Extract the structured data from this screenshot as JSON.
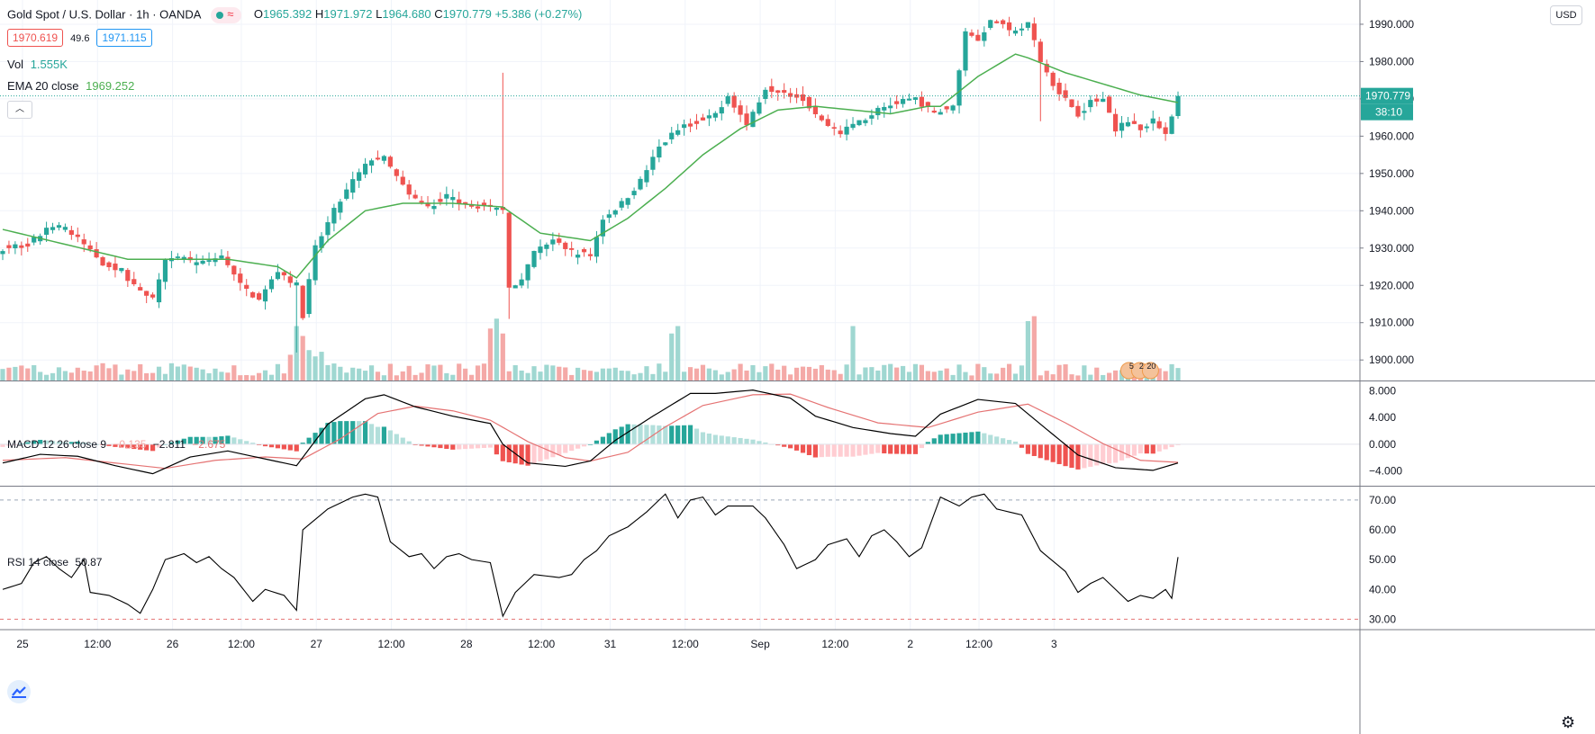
{
  "header": {
    "symbol": "Gold Spot / U.S. Dollar",
    "interval": "1h",
    "source": "OANDA",
    "o_label": "O",
    "o_value": "1965.392",
    "h_label": "H",
    "h_value": "1971.972",
    "l_label": "L",
    "l_value": "1964.680",
    "c_label": "C",
    "c_value": "1970.779",
    "change": "+5.386 (+0.27%)",
    "bid": "1970.619",
    "spread": "49.6",
    "ask": "1971.115"
  },
  "volume_legend": {
    "label": "Vol",
    "value": "1.555K"
  },
  "ema_legend": {
    "label": "EMA 20 close",
    "value": "1969.252"
  },
  "macd_legend": {
    "label": "MACD 12 26 close 9",
    "hist": "−0.135",
    "macd": "−2.811",
    "signal": "−2.675"
  },
  "rsi_legend": {
    "label": "RSI 14 close",
    "value": "50.87"
  },
  "price_scale": {
    "currency_button": "USD",
    "last_price_tag": "1970.779",
    "countdown_tag": "38:10",
    "top_clip_label": "20"
  },
  "events": {
    "label_a": "5",
    "label_b": "2",
    "label_c": "20"
  },
  "colors": {
    "up": "#26a69a",
    "down": "#ef5350",
    "vol_up": "#9fd7d1",
    "vol_down": "#f4a9a7",
    "ema": "#4caf50",
    "macd_line": "#000000",
    "signal_line": "#e57373",
    "grid": "#f0f3fa"
  },
  "icons": {
    "collapse": "chevron-up-icon",
    "logo": "tradingview-logo",
    "settings": "gear-icon"
  },
  "chart_data": [
    {
      "type": "candlestick",
      "title": "Gold Spot / U.S. Dollar · 1h · OANDA",
      "x_ticks": [
        "25",
        "12:00",
        "26",
        "12:00",
        "27",
        "12:00",
        "28",
        "12:00",
        "31",
        "12:00",
        "Sep",
        "12:00",
        "2",
        "12:00",
        "3"
      ],
      "y_ticks": [
        1900,
        1910,
        1920,
        1930,
        1940,
        1950,
        1960,
        1970,
        1980,
        1990
      ],
      "ylim": [
        1894.5,
        1996.5
      ],
      "close_anchors": [
        [
          0,
          1930
        ],
        [
          4,
          1931
        ],
        [
          8,
          1936
        ],
        [
          10,
          1935
        ],
        [
          13,
          1931
        ],
        [
          16,
          1926
        ],
        [
          19,
          1924
        ],
        [
          22,
          1918
        ],
        [
          24,
          1916
        ],
        [
          26,
          1927
        ],
        [
          29,
          1927
        ],
        [
          32,
          1926
        ],
        [
          35,
          1928
        ],
        [
          38,
          1920
        ],
        [
          41,
          1916
        ],
        [
          44,
          1924
        ],
        [
          47,
          1920
        ],
        [
          48,
          1912
        ],
        [
          50,
          1930
        ],
        [
          53,
          1940
        ],
        [
          56,
          1948
        ],
        [
          59,
          1954
        ],
        [
          61,
          1954
        ],
        [
          63,
          1949
        ],
        [
          65,
          1944
        ],
        [
          68,
          1941
        ],
        [
          71,
          1944
        ],
        [
          74,
          1942
        ],
        [
          77,
          1941
        ],
        [
          80,
          1940
        ],
        [
          81,
          1920
        ],
        [
          83,
          1921
        ],
        [
          85,
          1929
        ],
        [
          88,
          1932
        ],
        [
          91,
          1929
        ],
        [
          94,
          1928
        ],
        [
          96,
          1938
        ],
        [
          99,
          1942
        ],
        [
          102,
          1948
        ],
        [
          105,
          1957
        ],
        [
          108,
          1962
        ],
        [
          111,
          1964
        ],
        [
          114,
          1966
        ],
        [
          116,
          1971
        ],
        [
          119,
          1963
        ],
        [
          122,
          1973
        ],
        [
          125,
          1972
        ],
        [
          128,
          1970
        ],
        [
          131,
          1964
        ],
        [
          134,
          1961
        ],
        [
          137,
          1964
        ],
        [
          140,
          1967
        ],
        [
          143,
          1969
        ],
        [
          146,
          1970
        ],
        [
          149,
          1966
        ],
        [
          152,
          1968
        ],
        [
          154,
          1988
        ],
        [
          156,
          1986
        ],
        [
          158,
          1991
        ],
        [
          160,
          1990
        ],
        [
          162,
          1988
        ],
        [
          164,
          1990
        ],
        [
          166,
          1980
        ],
        [
          168,
          1974
        ],
        [
          170,
          1970
        ],
        [
          172,
          1966
        ],
        [
          174,
          1969
        ],
        [
          176,
          1970
        ],
        [
          178,
          1962
        ],
        [
          180,
          1964
        ],
        [
          182,
          1962
        ],
        [
          184,
          1964
        ],
        [
          186,
          1961
        ],
        [
          188,
          1970.779
        ]
      ],
      "overlay": {
        "name": "EMA 20 close",
        "last": 1969.252,
        "anchors": [
          [
            0,
            1935
          ],
          [
            10,
            1931
          ],
          [
            20,
            1927
          ],
          [
            28,
            1927
          ],
          [
            36,
            1927
          ],
          [
            44,
            1925
          ],
          [
            47,
            1922
          ],
          [
            52,
            1932
          ],
          [
            58,
            1940
          ],
          [
            64,
            1942
          ],
          [
            72,
            1942
          ],
          [
            80,
            1941
          ],
          [
            86,
            1934
          ],
          [
            90,
            1933
          ],
          [
            94,
            1932
          ],
          [
            100,
            1938
          ],
          [
            106,
            1946
          ],
          [
            112,
            1955
          ],
          [
            118,
            1962
          ],
          [
            124,
            1967
          ],
          [
            130,
            1968
          ],
          [
            136,
            1967
          ],
          [
            142,
            1966
          ],
          [
            148,
            1968
          ],
          [
            150,
            1968
          ],
          [
            156,
            1976
          ],
          [
            162,
            1982
          ],
          [
            164,
            1981
          ],
          [
            170,
            1977
          ],
          [
            176,
            1974
          ],
          [
            182,
            1971
          ],
          [
            188,
            1969
          ]
        ]
      },
      "volume": {
        "name": "Vol",
        "last": "1.555K",
        "spikes": [
          [
            47,
            1.1
          ],
          [
            48,
            0.9
          ],
          [
            78,
            1.05
          ],
          [
            79,
            1.25
          ],
          [
            80,
            0.95
          ],
          [
            107,
            0.95
          ],
          [
            108,
            1.1
          ],
          [
            136,
            1.1
          ],
          [
            164,
            1.2
          ],
          [
            165,
            1.3
          ]
        ]
      }
    },
    {
      "type": "line",
      "name": "MACD 12 26 close 9",
      "y_ticks": [
        8,
        4,
        0,
        -4
      ],
      "ylim": [
        -6.2,
        9.4
      ],
      "macd_anchors": [
        [
          0,
          -2.8
        ],
        [
          6,
          -1.5
        ],
        [
          12,
          -1.8
        ],
        [
          18,
          -3.2
        ],
        [
          24,
          -4.4
        ],
        [
          30,
          -1.9
        ],
        [
          36,
          -1.0
        ],
        [
          40,
          -1.8
        ],
        [
          47,
          -3.2
        ],
        [
          52,
          3.0
        ],
        [
          58,
          6.8
        ],
        [
          61,
          7.4
        ],
        [
          66,
          5.6
        ],
        [
          72,
          4.2
        ],
        [
          78,
          3.1
        ],
        [
          80,
          0.0
        ],
        [
          84,
          -2.8
        ],
        [
          90,
          -3.3
        ],
        [
          94,
          -2.5
        ],
        [
          98,
          0.6
        ],
        [
          104,
          4.2
        ],
        [
          110,
          7.6
        ],
        [
          114,
          7.6
        ],
        [
          120,
          8.1
        ],
        [
          126,
          6.9
        ],
        [
          130,
          4.2
        ],
        [
          136,
          2.5
        ],
        [
          142,
          1.6
        ],
        [
          146,
          1.2
        ],
        [
          150,
          4.5
        ],
        [
          156,
          6.7
        ],
        [
          162,
          6.1
        ],
        [
          166,
          3.0
        ],
        [
          172,
          -1.6
        ],
        [
          178,
          -3.5
        ],
        [
          184,
          -3.9
        ],
        [
          188,
          -2.8
        ]
      ],
      "signal_anchors": [
        [
          0,
          -2.4
        ],
        [
          10,
          -2.0
        ],
        [
          20,
          -3.0
        ],
        [
          26,
          -3.6
        ],
        [
          34,
          -2.4
        ],
        [
          42,
          -1.9
        ],
        [
          48,
          -2.2
        ],
        [
          54,
          0.8
        ],
        [
          60,
          4.6
        ],
        [
          66,
          5.7
        ],
        [
          72,
          5.0
        ],
        [
          78,
          3.6
        ],
        [
          84,
          0.4
        ],
        [
          90,
          -2.0
        ],
        [
          94,
          -2.5
        ],
        [
          100,
          -1.2
        ],
        [
          106,
          2.6
        ],
        [
          112,
          5.8
        ],
        [
          120,
          7.4
        ],
        [
          126,
          7.5
        ],
        [
          132,
          5.5
        ],
        [
          140,
          3.2
        ],
        [
          148,
          2.5
        ],
        [
          156,
          4.8
        ],
        [
          164,
          6.0
        ],
        [
          170,
          3.2
        ],
        [
          176,
          0.1
        ],
        [
          182,
          -2.4
        ],
        [
          188,
          -2.7
        ]
      ],
      "hist_last": -0.135,
      "macd_last": -2.811,
      "signal_last": -2.675
    },
    {
      "type": "line",
      "name": "RSI 14 close",
      "y_ticks": [
        70,
        60,
        50,
        40,
        30
      ],
      "ylim": [
        26.5,
        74.5
      ],
      "bands": [
        70,
        30
      ],
      "anchors": [
        [
          0,
          40
        ],
        [
          3,
          42
        ],
        [
          5,
          49
        ],
        [
          7,
          51
        ],
        [
          9,
          47
        ],
        [
          11,
          44
        ],
        [
          13,
          50
        ],
        [
          14,
          39
        ],
        [
          17,
          38
        ],
        [
          20,
          35
        ],
        [
          22,
          32
        ],
        [
          24,
          40
        ],
        [
          26,
          50
        ],
        [
          29,
          52
        ],
        [
          31,
          49
        ],
        [
          33,
          51
        ],
        [
          35,
          47
        ],
        [
          37,
          44
        ],
        [
          40,
          36
        ],
        [
          42,
          40
        ],
        [
          45,
          38
        ],
        [
          47,
          33
        ],
        [
          48,
          60
        ],
        [
          52,
          67
        ],
        [
          56,
          71
        ],
        [
          58,
          72
        ],
        [
          60,
          71
        ],
        [
          62,
          56
        ],
        [
          65,
          51
        ],
        [
          67,
          52
        ],
        [
          69,
          47
        ],
        [
          71,
          51
        ],
        [
          73,
          52
        ],
        [
          75,
          50
        ],
        [
          78,
          49
        ],
        [
          80,
          31
        ],
        [
          82,
          39
        ],
        [
          85,
          45
        ],
        [
          89,
          44
        ],
        [
          91,
          45
        ],
        [
          93,
          50
        ],
        [
          95,
          53
        ],
        [
          97,
          58
        ],
        [
          100,
          61
        ],
        [
          103,
          66
        ],
        [
          106,
          72
        ],
        [
          108,
          64
        ],
        [
          110,
          70
        ],
        [
          112,
          71
        ],
        [
          114,
          65
        ],
        [
          116,
          68
        ],
        [
          118,
          68
        ],
        [
          120,
          68
        ],
        [
          122,
          64
        ],
        [
          125,
          55
        ],
        [
          127,
          47
        ],
        [
          130,
          50
        ],
        [
          132,
          55
        ],
        [
          135,
          57
        ],
        [
          137,
          51
        ],
        [
          139,
          58
        ],
        [
          141,
          60
        ],
        [
          143,
          56
        ],
        [
          145,
          51
        ],
        [
          147,
          54
        ],
        [
          150,
          71
        ],
        [
          153,
          68
        ],
        [
          155,
          71
        ],
        [
          157,
          72
        ],
        [
          159,
          67
        ],
        [
          161,
          66
        ],
        [
          163,
          65
        ],
        [
          166,
          53
        ],
        [
          170,
          46
        ],
        [
          172,
          39
        ],
        [
          174,
          42
        ],
        [
          176,
          44
        ],
        [
          178,
          40
        ],
        [
          180,
          36
        ],
        [
          182,
          38
        ],
        [
          184,
          37
        ],
        [
          186,
          40
        ],
        [
          187,
          37
        ],
        [
          188,
          50.87
        ]
      ],
      "last": 50.87
    }
  ]
}
